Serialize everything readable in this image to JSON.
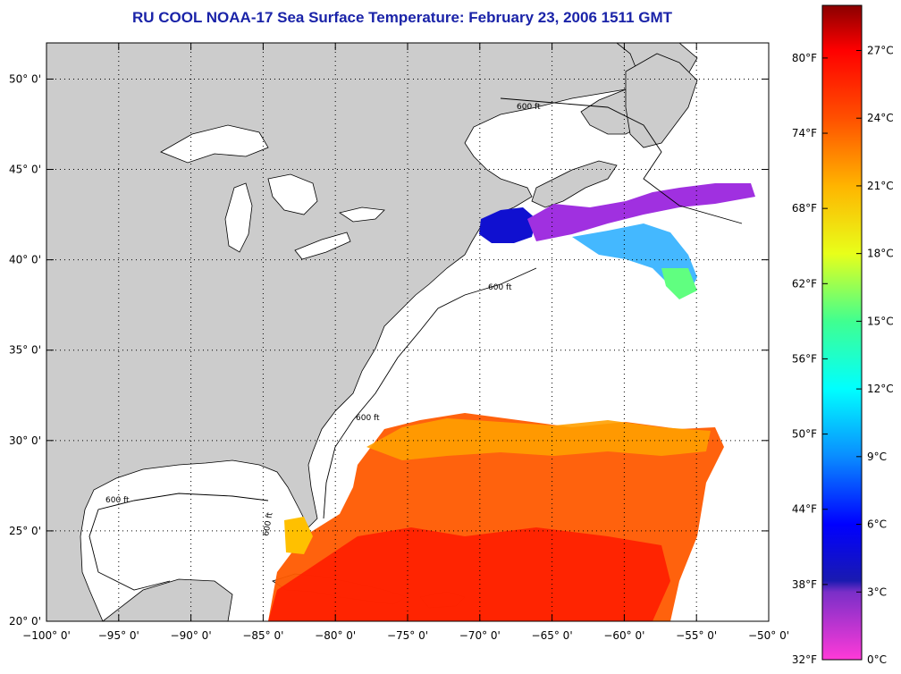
{
  "title": "RU COOL  NOAA-17  Sea Surface Temperature:  February 23, 2006 1511 GMT",
  "map": {
    "lon_range": [
      -100,
      -50
    ],
    "lat_range": [
      20,
      52
    ],
    "lon_ticks": [
      "−100° 0'",
      "−95° 0'",
      "−90° 0'",
      "−85° 0'",
      "−80° 0'",
      "−75° 0'",
      "−70° 0'",
      "−65° 0'",
      "−60° 0'",
      "−55° 0'",
      "−50° 0'"
    ],
    "lat_ticks": [
      "20° 0'",
      "25° 0'",
      "30° 0'",
      "35° 0'",
      "40° 0'",
      "45° 0'",
      "50° 0'"
    ],
    "contour_label": "600 ft",
    "land_color": "#cccccc",
    "ocean_color": "#ffffff"
  },
  "colorbar": {
    "fahrenheit_labels": [
      "32°F",
      "38°F",
      "44°F",
      "50°F",
      "56°F",
      "62°F",
      "68°F",
      "74°F",
      "80°F"
    ],
    "celsius_labels": [
      "0°C",
      "3°C",
      "6°C",
      "9°C",
      "12°C",
      "15°C",
      "18°C",
      "21°C",
      "24°C",
      "27°C"
    ],
    "range_c": [
      0,
      29
    ],
    "stops": [
      {
        "c": 0,
        "color": "#ff3ad8"
      },
      {
        "c": 3,
        "color": "#7a2fc8"
      },
      {
        "c": 3.5,
        "color": "#1a1ab0"
      },
      {
        "c": 6,
        "color": "#0000ff"
      },
      {
        "c": 9,
        "color": "#0a8cff"
      },
      {
        "c": 12,
        "color": "#00ffff"
      },
      {
        "c": 15,
        "color": "#40ff90"
      },
      {
        "c": 18,
        "color": "#e8ff1a"
      },
      {
        "c": 21,
        "color": "#ffb400"
      },
      {
        "c": 24,
        "color": "#ff5000"
      },
      {
        "c": 27,
        "color": "#ff0000"
      },
      {
        "c": 29,
        "color": "#8a0000"
      }
    ]
  }
}
